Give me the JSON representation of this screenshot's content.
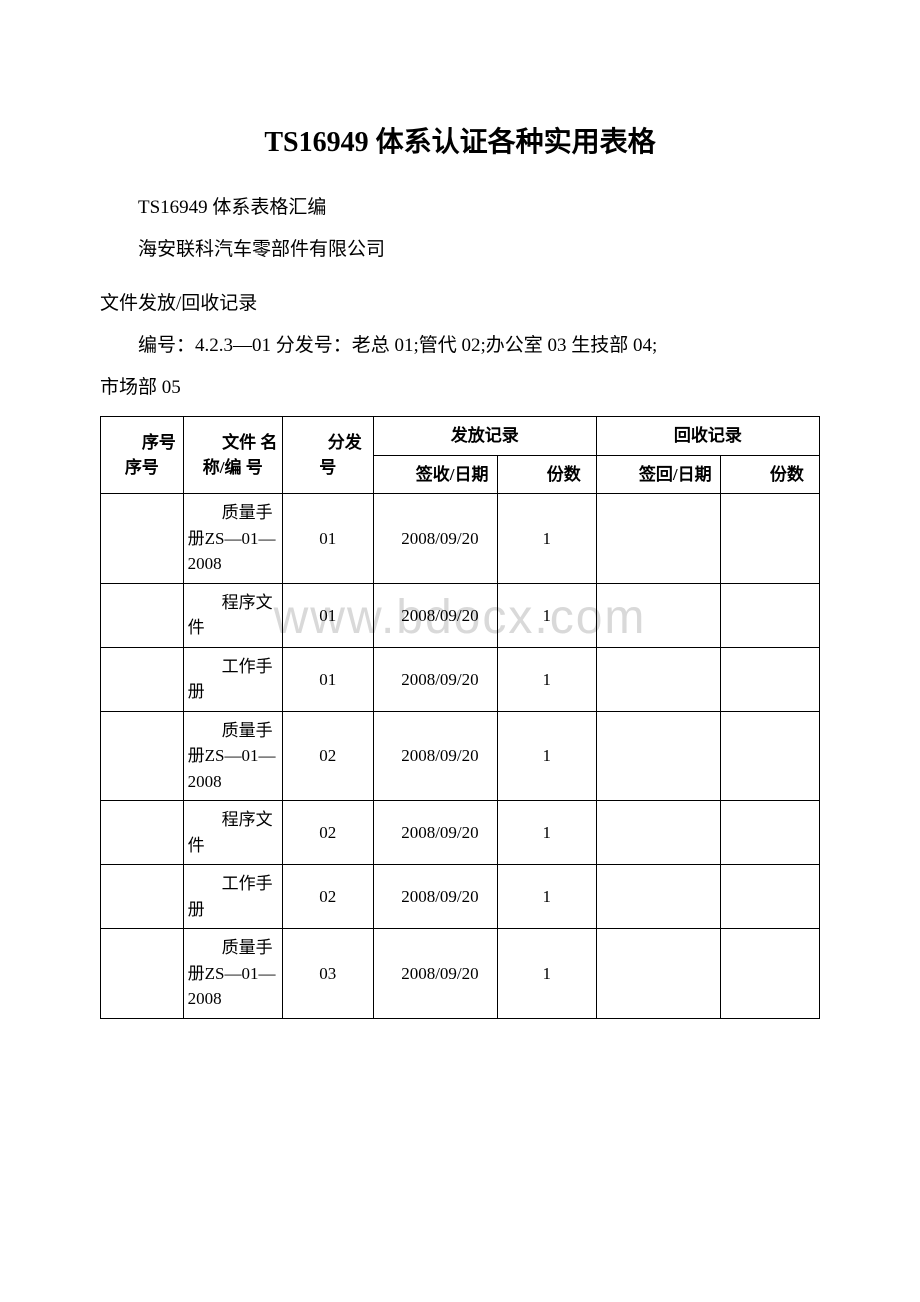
{
  "watermark": "www.bdocx.com",
  "title": "TS16949 体系认证各种实用表格",
  "line1": "TS16949 体系表格汇编",
  "line2": "海安联科汽车零部件有限公司",
  "section": "文件发放/回收记录",
  "numbering_prefix": "编号：4.2.3—01  分发号：老总 01;管代 02;办公室 03 生技部 04;",
  "numbering_wrap": "市场部 05",
  "headers": {
    "seq": "序号序号",
    "name": "文件 名 称/编  号",
    "dist": "分发号",
    "issue_group": "发放记录",
    "recall_group": "回收记录",
    "sign": "签收/日期",
    "qty": "份数",
    "sign2": "签回/日期",
    "qty2": "份数"
  },
  "rows": [
    {
      "seq": "",
      "name": "质量手册ZS—01—2008",
      "dist": "01",
      "sign": "2008/09/20",
      "qty": "1",
      "sign2": "",
      "qty2": ""
    },
    {
      "seq": "",
      "name": "程序文件",
      "dist": "01",
      "sign": "2008/09/20",
      "qty": "1",
      "sign2": "",
      "qty2": ""
    },
    {
      "seq": "",
      "name": "工作手册",
      "dist": "01",
      "sign": "2008/09/20",
      "qty": "1",
      "sign2": "",
      "qty2": ""
    },
    {
      "seq": "",
      "name": "质量手册ZS—01—2008",
      "dist": "02",
      "sign": "2008/09/20",
      "qty": "1",
      "sign2": "",
      "qty2": ""
    },
    {
      "seq": "",
      "name": "程序文件",
      "dist": "02",
      "sign": "2008/09/20",
      "qty": "1",
      "sign2": "",
      "qty2": ""
    },
    {
      "seq": "",
      "name": "工作手册",
      "dist": "02",
      "sign": "2008/09/20",
      "qty": "1",
      "sign2": "",
      "qty2": ""
    },
    {
      "seq": "",
      "name": "质量手册ZS—01—2008",
      "dist": "03",
      "sign": "2008/09/20",
      "qty": "1",
      "sign2": "",
      "qty2": ""
    }
  ]
}
